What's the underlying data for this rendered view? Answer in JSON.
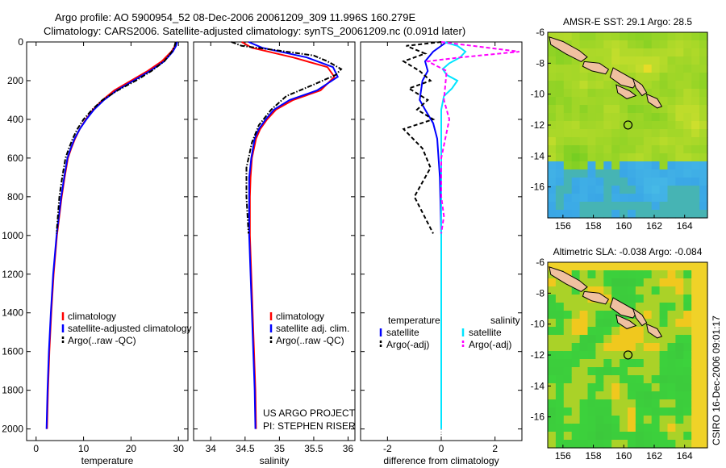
{
  "title_line1": "Argo profile: AO 5900954_52 08-Dec-2006 20061209_309 11.996S 160.279E",
  "title_line2": "Climatology: CARS2006. Satellite-adjusted climatology: synTS_20061209.nc (0.091d later)",
  "footer_stamp": "CSIRO 16-Dec-2006 09:01:17",
  "project_line1": "US ARGO PROJECT",
  "project_line2": "PI: STEPHEN RISER",
  "colors": {
    "climatology": "#ff0000",
    "satellite": "#0000ff",
    "argo": "#000000",
    "sat_sal": "#00e5ff",
    "argo_sal": "#ff00ff"
  },
  "chart_data": [
    {
      "type": "line",
      "title": "",
      "xlabel": "temperature",
      "ylabel": "",
      "xlim": [
        -2,
        32
      ],
      "ylim": [
        0,
        2060
      ],
      "y_inverted": true,
      "xticks": [
        0,
        10,
        20,
        30
      ],
      "yticks": [
        0,
        200,
        400,
        600,
        800,
        1000,
        1200,
        1400,
        1600,
        1800,
        2000
      ],
      "legend": [
        "climatology",
        "satellite-adjusted climatology",
        "Argo(..raw -QC)"
      ],
      "series": [
        {
          "name": "climatology",
          "style": "solid",
          "color": "#ff0000",
          "x": [
            29.5,
            29.3,
            28.5,
            26.5,
            23.5,
            20,
            16.5,
            14,
            12,
            10.5,
            9.2,
            8.2,
            7.4,
            6.7,
            6.0,
            5.4,
            4.4,
            3.7,
            3.2,
            2.8,
            2.5,
            2.3
          ],
          "y": [
            0,
            20,
            50,
            100,
            150,
            200,
            250,
            300,
            350,
            400,
            450,
            500,
            550,
            600,
            700,
            800,
            1000,
            1200,
            1400,
            1600,
            1800,
            2000
          ]
        },
        {
          "name": "satellite",
          "style": "solid",
          "color": "#0000ff",
          "x": [
            29.7,
            29.5,
            28.8,
            27,
            24,
            20.5,
            17,
            14.3,
            12.2,
            10.6,
            9.2,
            8.1,
            7.3,
            6.6,
            5.9,
            5.3,
            4.3,
            3.6,
            3.1,
            2.7,
            2.4,
            2.2
          ],
          "y": [
            0,
            20,
            50,
            100,
            150,
            200,
            250,
            300,
            350,
            400,
            450,
            500,
            550,
            600,
            700,
            800,
            1000,
            1200,
            1400,
            1600,
            1800,
            2000
          ]
        },
        {
          "name": "argo",
          "style": "dashdot",
          "color": "#000000",
          "x": [
            29.4,
            29.2,
            28.6,
            27,
            24.3,
            21,
            17.2,
            14,
            11.8,
            10,
            8.7,
            7.7,
            6.9,
            6.2,
            5.5,
            4.9,
            4.3
          ],
          "y": [
            0,
            20,
            50,
            100,
            150,
            200,
            250,
            300,
            350,
            400,
            450,
            500,
            550,
            600,
            700,
            800,
            990
          ]
        }
      ]
    },
    {
      "type": "line",
      "title": "",
      "xlabel": "salinity",
      "ylabel": "",
      "xlim": [
        33.75,
        36.1
      ],
      "ylim": [
        0,
        2060
      ],
      "y_inverted": true,
      "xticks": [
        34,
        34.5,
        35,
        35.5,
        36
      ],
      "legend": [
        "climatology",
        "satellite adj. clim.",
        "Argo(..raw -QC)"
      ],
      "series": [
        {
          "name": "climatology",
          "style": "solid",
          "color": "#ff0000",
          "x": [
            34.45,
            34.6,
            35.2,
            35.7,
            35.8,
            35.6,
            35.2,
            34.95,
            34.82,
            34.72,
            34.66,
            34.6,
            34.58,
            34.57,
            34.57,
            34.59,
            34.61,
            34.63,
            34.65,
            34.66
          ],
          "y": [
            0,
            30,
            80,
            130,
            180,
            250,
            300,
            350,
            400,
            450,
            500,
            600,
            700,
            800,
            1000,
            1200,
            1400,
            1600,
            1800,
            2000
          ]
        },
        {
          "name": "satellite",
          "style": "solid",
          "color": "#0000ff",
          "x": [
            34.55,
            34.75,
            35.4,
            35.78,
            35.85,
            35.55,
            35.15,
            34.92,
            34.8,
            34.7,
            34.64,
            34.59,
            34.56,
            34.56,
            34.56,
            34.58,
            34.6,
            34.62,
            34.64,
            34.65
          ],
          "y": [
            0,
            30,
            80,
            130,
            180,
            250,
            300,
            350,
            400,
            450,
            500,
            600,
            700,
            800,
            1000,
            1200,
            1400,
            1600,
            1800,
            2000
          ]
        },
        {
          "name": "argo",
          "style": "dashdot",
          "color": "#000000",
          "x": [
            34.3,
            34.45,
            34.9,
            35.5,
            35.7,
            35.9,
            35.82,
            35.5,
            35.1,
            34.88,
            34.7,
            34.6,
            34.52,
            34.52,
            34.55
          ],
          "y": [
            0,
            20,
            40,
            70,
            100,
            140,
            170,
            220,
            280,
            350,
            430,
            520,
            650,
            800,
            990
          ]
        }
      ]
    },
    {
      "type": "line",
      "title": "",
      "xlabel": "difference from climatology",
      "ylabel": "",
      "xlim": [
        -3,
        3
      ],
      "ylim": [
        0,
        2060
      ],
      "y_inverted": true,
      "xticks": [
        -2,
        0,
        2
      ],
      "legend": [
        "temperature",
        "satellite",
        "Argo(-adj)",
        "salinity",
        "satellite",
        "Argo(-adj)"
      ],
      "series": [
        {
          "name": "temperature satellite",
          "style": "solid",
          "color": "#0000ff",
          "x": [
            0.2,
            -0.3,
            -0.6,
            -0.5,
            -0.7,
            -0.8,
            -0.6,
            -0.3,
            -0.15,
            -0.05,
            0,
            0,
            0
          ],
          "y": [
            0,
            50,
            100,
            150,
            200,
            300,
            350,
            420,
            500,
            700,
            1000,
            1500,
            2000
          ]
        },
        {
          "name": "temperature argo",
          "style": "dashed",
          "color": "#000000",
          "x": [
            0,
            -1.3,
            -0.6,
            -1.4,
            -0.8,
            -0.4,
            -1.2,
            -0.5,
            -0.9,
            -0.3,
            -1.4,
            -0.7,
            -0.4,
            -1.0,
            -0.3
          ],
          "y": [
            0,
            20,
            60,
            100,
            150,
            200,
            240,
            300,
            350,
            400,
            450,
            550,
            650,
            800,
            990
          ]
        },
        {
          "name": "salinity satellite",
          "style": "solid",
          "color": "#00e5ff",
          "x": [
            0.1,
            0.6,
            0.9,
            0.7,
            0.3,
            0.05,
            0.2,
            0.6,
            0.4,
            0.1,
            0,
            0,
            0,
            0
          ],
          "y": [
            0,
            20,
            50,
            80,
            110,
            140,
            170,
            200,
            240,
            280,
            350,
            500,
            1000,
            2000
          ]
        },
        {
          "name": "salinity argo",
          "style": "dashed",
          "color": "#ff00ff",
          "x": [
            0,
            2.9,
            0.7,
            -0.5,
            0.2,
            0.1,
            0.3,
            0,
            0,
            0.1,
            0
          ],
          "y": [
            0,
            50,
            80,
            100,
            150,
            300,
            400,
            600,
            800,
            900,
            990
          ]
        }
      ]
    },
    {
      "type": "heatmap",
      "title": "AMSR-E SST: 29.1  Argo: 28.5",
      "xlabel": "",
      "ylabel": "",
      "xlim": [
        155,
        165.5
      ],
      "ylim": [
        -18,
        -6
      ],
      "xticks": [
        156,
        158,
        160,
        162,
        164
      ],
      "yticks": [
        -6,
        -8,
        -10,
        -12,
        -14,
        -16
      ],
      "argo_position": {
        "lon": 160.279,
        "lat": -11.996
      }
    },
    {
      "type": "heatmap",
      "title": "Altimetric SLA: -0.038  Argo: -0.084",
      "xlabel": "",
      "ylabel": "",
      "xlim": [
        155,
        165.5
      ],
      "ylim": [
        -18,
        -6
      ],
      "xticks": [
        156,
        158,
        160,
        162,
        164
      ],
      "yticks": [
        -6,
        -8,
        -10,
        -12,
        -14,
        -16
      ],
      "argo_position": {
        "lon": 160.279,
        "lat": -11.996
      }
    }
  ]
}
